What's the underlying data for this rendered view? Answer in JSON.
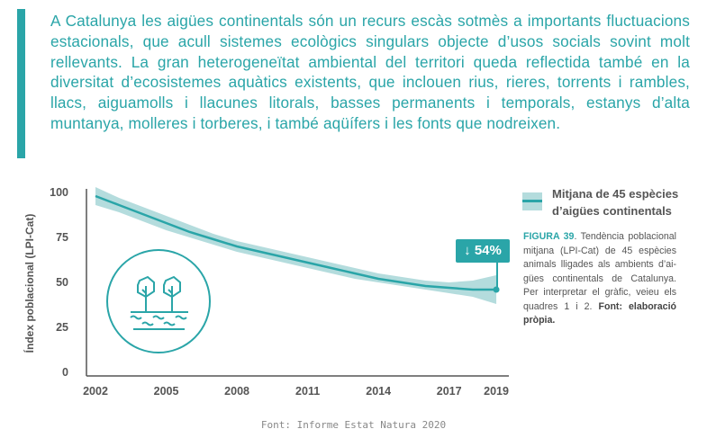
{
  "intro_text": "A Catalunya les aigües continentals són un recurs escàs sotmès a importants fluctuacions estacionals, que acull sistemes ecològics singulars objecte d’usos socials sovint molt rellevants. La gran heterogeneïtat ambiental del territori queda reflectida també en la diversitat d’ecosistemes aquàtics existents, que inclouen rius, rieres, torrents i rambles, llacs, aiguamolls i llacunes litorals, basses permanents i temporals, estanys d’alta muntanya, molleres i torberes, i també aqüífers i les fonts que nodreixen.",
  "colors": {
    "accent": "#2aa5a8",
    "band": "#b4dcdd",
    "text": "#555555"
  },
  "chart_data": {
    "type": "line",
    "ylabel": "Índex poblacional (LPI-Cat)",
    "xlabel": "",
    "ylim": [
      0,
      100
    ],
    "yticks": [
      "0",
      "25",
      "50",
      "75",
      "100"
    ],
    "xticks": [
      "2002",
      "2005",
      "2008",
      "2011",
      "2014",
      "2017",
      "2019"
    ],
    "series": [
      {
        "name": "Mitjana de 45 espècies d’aigües continentals",
        "x": [
          2002,
          2003,
          2004,
          2005,
          2006,
          2007,
          2008,
          2009,
          2010,
          2011,
          2012,
          2013,
          2014,
          2015,
          2016,
          2017,
          2018,
          2019
        ],
        "values": [
          98,
          93,
          88,
          83,
          78,
          74,
          70,
          67,
          64,
          61,
          58,
          55,
          52,
          50,
          48,
          47,
          46,
          46
        ],
        "upper": [
          103,
          97,
          92,
          87,
          82,
          77,
          73,
          70,
          67,
          64,
          61,
          58,
          55,
          53,
          51,
          50,
          51,
          54
        ],
        "lower": [
          93,
          89,
          84,
          79,
          75,
          71,
          67,
          64,
          61,
          58,
          55,
          52,
          50,
          48,
          46,
          44,
          42,
          38
        ]
      }
    ],
    "annotation": {
      "label": "54%",
      "direction": "down",
      "year": 2019
    }
  },
  "legend": {
    "label": "Mitjana de 45 espècies d’aigües continentals"
  },
  "caption": {
    "figure": "FIGURA 39",
    "text": ". Tendència poblacional mitjana (LPI-Cat) de 45 espècies animals lligades als ambients d’ai­gües continentals de Catalunya. Per interpretar el gràfic, veieu els qua­dres 1 i 2. ",
    "source": "Font: elaboració pròpia."
  },
  "source": "Font: Informe Estat Natura 2020"
}
